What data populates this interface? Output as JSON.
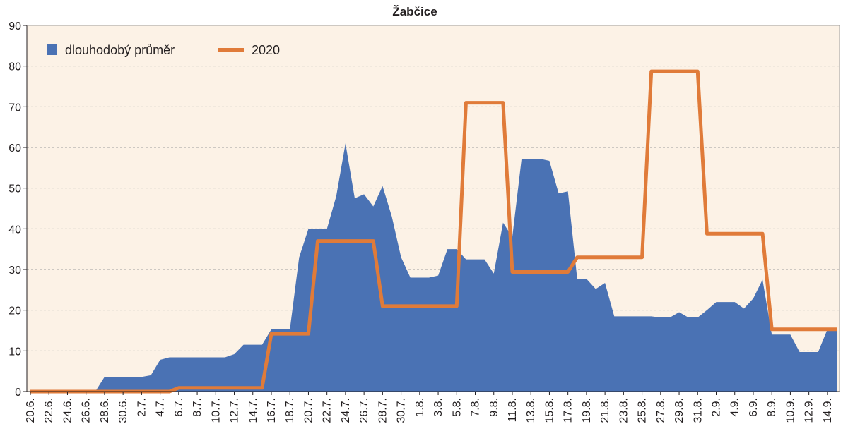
{
  "chart_data": {
    "type": "area",
    "title": "Žabčice",
    "xlabel": "",
    "ylabel": "",
    "ylim": [
      0,
      90
    ],
    "yticks": [
      0,
      10,
      20,
      30,
      40,
      50,
      60,
      70,
      80,
      90
    ],
    "grid": true,
    "legend_position": "top-left",
    "colors": {
      "plot_background": "#fcf2e6",
      "area": "#4a72b4",
      "line": "#e07b39",
      "grid": "#9e9e9e"
    },
    "categories": [
      "20.6.",
      "21.6.",
      "22.6.",
      "23.6.",
      "24.6.",
      "25.6.",
      "26.6.",
      "27.6.",
      "28.6.",
      "29.6.",
      "30.6.",
      "1.7.",
      "2.7.",
      "3.7.",
      "4.7.",
      "5.7.",
      "6.7.",
      "7.7.",
      "8.7.",
      "9.7.",
      "10.7.",
      "11.7.",
      "12.7.",
      "13.7.",
      "14.7.",
      "15.7.",
      "16.7.",
      "17.7.",
      "18.7.",
      "19.7.",
      "20.7.",
      "21.7.",
      "22.7.",
      "23.7.",
      "24.7.",
      "25.7.",
      "26.7.",
      "27.7.",
      "28.7.",
      "29.7.",
      "30.7.",
      "31.7.",
      "1.8.",
      "2.8.",
      "3.8.",
      "4.8.",
      "5.8.",
      "6.8.",
      "7.8.",
      "8.8.",
      "9.8.",
      "10.8.",
      "11.8.",
      "12.8.",
      "13.8.",
      "14.8.",
      "15.8.",
      "16.8.",
      "17.8.",
      "18.8.",
      "19.8.",
      "20.8.",
      "21.8.",
      "22.8.",
      "23.8.",
      "24.8.",
      "25.8.",
      "26.8.",
      "27.8.",
      "28.8.",
      "29.8.",
      "30.8.",
      "31.8.",
      "1.9.",
      "2.9.",
      "3.9.",
      "4.9.",
      "5.9.",
      "6.9.",
      "7.9.",
      "8.9.",
      "9.9.",
      "10.9.",
      "11.9.",
      "12.9.",
      "13.9.",
      "14.9.",
      "15.9."
    ],
    "x_tick_labels": [
      "20.6.",
      "22.6.",
      "24.6.",
      "26.6.",
      "28.6.",
      "30.6.",
      "2.7.",
      "4.7.",
      "6.7.",
      "8.7.",
      "10.7.",
      "12.7.",
      "14.7.",
      "16.7.",
      "18.7.",
      "20.7.",
      "22.7.",
      "24.7.",
      "26.7.",
      "28.7.",
      "30.7.",
      "1.8.",
      "3.8.",
      "5.8.",
      "7.8.",
      "9.8.",
      "11.8.",
      "13.8.",
      "15.8.",
      "17.8.",
      "19.8.",
      "21.8.",
      "23.8.",
      "25.8.",
      "27.8.",
      "29.8.",
      "31.8.",
      "2.9.",
      "4.9.",
      "6.9.",
      "8.9.",
      "10.9.",
      "12.9.",
      "14.9."
    ],
    "series": [
      {
        "name": "dlouhodobý průměr",
        "type": "area",
        "values": [
          0,
          0,
          0,
          0,
          0,
          0,
          0,
          0,
          3.6,
          3.6,
          3.6,
          3.6,
          3.6,
          4,
          7.8,
          8.4,
          8.4,
          8.4,
          8.4,
          8.4,
          8.4,
          8.4,
          9.2,
          11.5,
          11.5,
          11.5,
          15.3,
          15.3,
          15.3,
          33,
          40,
          40,
          40,
          48,
          61,
          47.5,
          48.5,
          45.5,
          50.5,
          43,
          33,
          28,
          28,
          28,
          28.5,
          35,
          35,
          32.5,
          32.5,
          32.5,
          29,
          41.5,
          38,
          57.2,
          57.2,
          57.2,
          56.7,
          48.7,
          49.2,
          27.7,
          27.7,
          25.2,
          26.7,
          18.5,
          18.5,
          18.5,
          18.5,
          18.5,
          18.2,
          18.2,
          19.5,
          18.2,
          18.2,
          20,
          22,
          22,
          22,
          20.4,
          22.9,
          27.5,
          14,
          14,
          14,
          9.7,
          9.7,
          9.7,
          15.3,
          15.3
        ]
      },
      {
        "name": "2020",
        "type": "line",
        "values": [
          0,
          0,
          0,
          0,
          0,
          0,
          0,
          0,
          0,
          0,
          0,
          0,
          0,
          0,
          0,
          0,
          0.9,
          0.9,
          0.9,
          0.9,
          0.9,
          0.9,
          0.9,
          0.9,
          0.9,
          0.9,
          14.2,
          14.2,
          14.2,
          14.2,
          14.2,
          37,
          37,
          37,
          37,
          37,
          37,
          37,
          21,
          21,
          21,
          21,
          21,
          21,
          21,
          21,
          21,
          71,
          71,
          71,
          71,
          71,
          29.4,
          29.4,
          29.4,
          29.4,
          29.4,
          29.4,
          29.4,
          33,
          33,
          33,
          33,
          33,
          33,
          33,
          33,
          78.7,
          78.7,
          78.7,
          78.7,
          78.7,
          78.7,
          38.8,
          38.8,
          38.8,
          38.8,
          38.8,
          38.8,
          38.8,
          15.3,
          15.3,
          15.3,
          15.3,
          15.3,
          15.3,
          15.3,
          15.3
        ]
      }
    ]
  }
}
